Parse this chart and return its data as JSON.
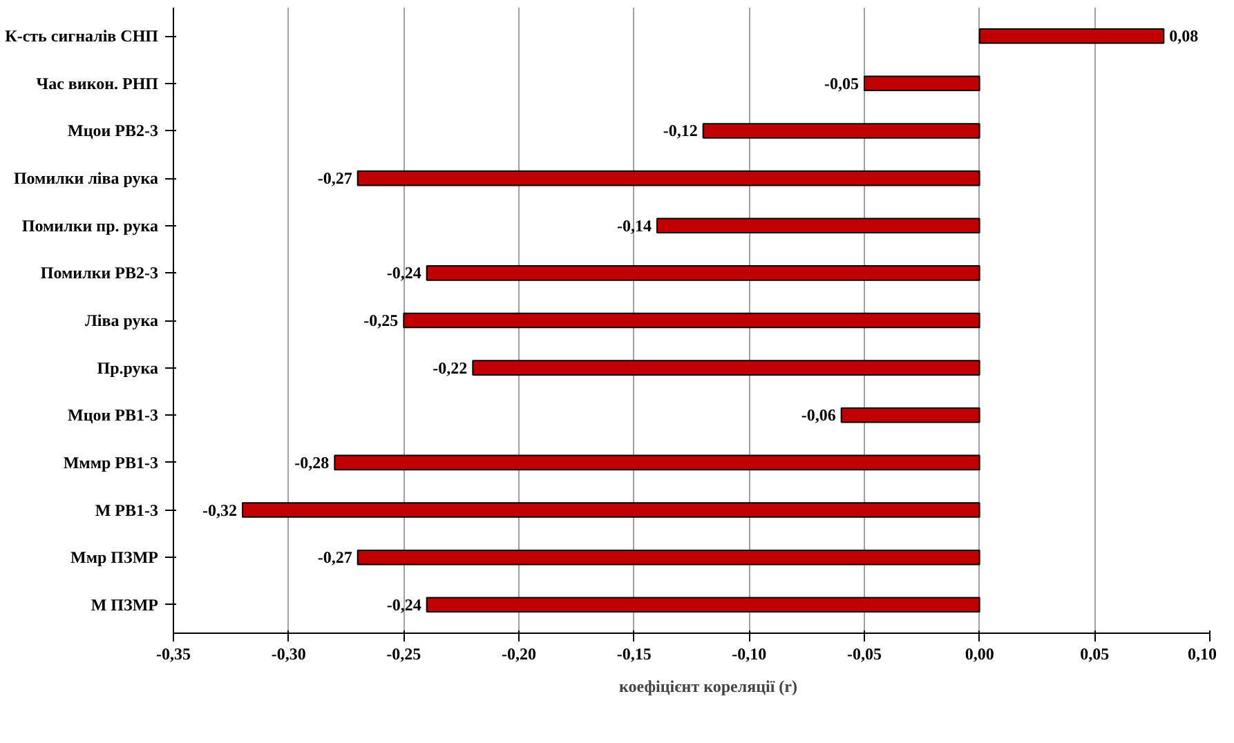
{
  "chart_data": {
    "type": "bar",
    "orientation": "horizontal",
    "categories": [
      "К-сть сигналів СНП",
      "Час викон. РНП",
      "Мцои РВ2-3",
      "Помилки ліва рука",
      "Помилки пр. рука",
      "Помилки РВ2-3",
      "Ліва рука",
      "Пр.рука",
      "Мцои РВ1-3",
      "Мммр РВ1-3",
      "М РВ1-3",
      "Ммр ПЗМР",
      "М ПЗМР"
    ],
    "series": [
      {
        "name": "коефіцієнт кореляції (r)",
        "color": "#c00000",
        "values": [
          0.08,
          -0.05,
          -0.12,
          -0.27,
          -0.14,
          -0.24,
          -0.25,
          -0.22,
          -0.06,
          -0.28,
          -0.32,
          -0.27,
          -0.24
        ],
        "value_labels": [
          "0,08",
          "-0,05",
          "-0,12",
          "-0,27",
          "-0,14",
          "-0,24",
          "-0,25",
          "-0,22",
          "-0,06",
          "-0,28",
          "-0,32",
          "-0,27",
          "-0,24"
        ]
      }
    ],
    "xlim": [
      -0.35,
      0.1
    ],
    "xticks": [
      {
        "value": -0.35,
        "label": "-0,35"
      },
      {
        "value": -0.3,
        "label": "-0,30"
      },
      {
        "value": -0.25,
        "label": "-0,25"
      },
      {
        "value": -0.2,
        "label": "-0,20"
      },
      {
        "value": -0.15,
        "label": "-0,15"
      },
      {
        "value": -0.1,
        "label": "-0,10"
      },
      {
        "value": -0.05,
        "label": "-0,05"
      },
      {
        "value": 0,
        "label": "0,00"
      },
      {
        "value": 0.05,
        "label": "0,05"
      },
      {
        "value": 0.1,
        "label": "0,10"
      }
    ],
    "grid": "x",
    "legend": "bottom"
  }
}
